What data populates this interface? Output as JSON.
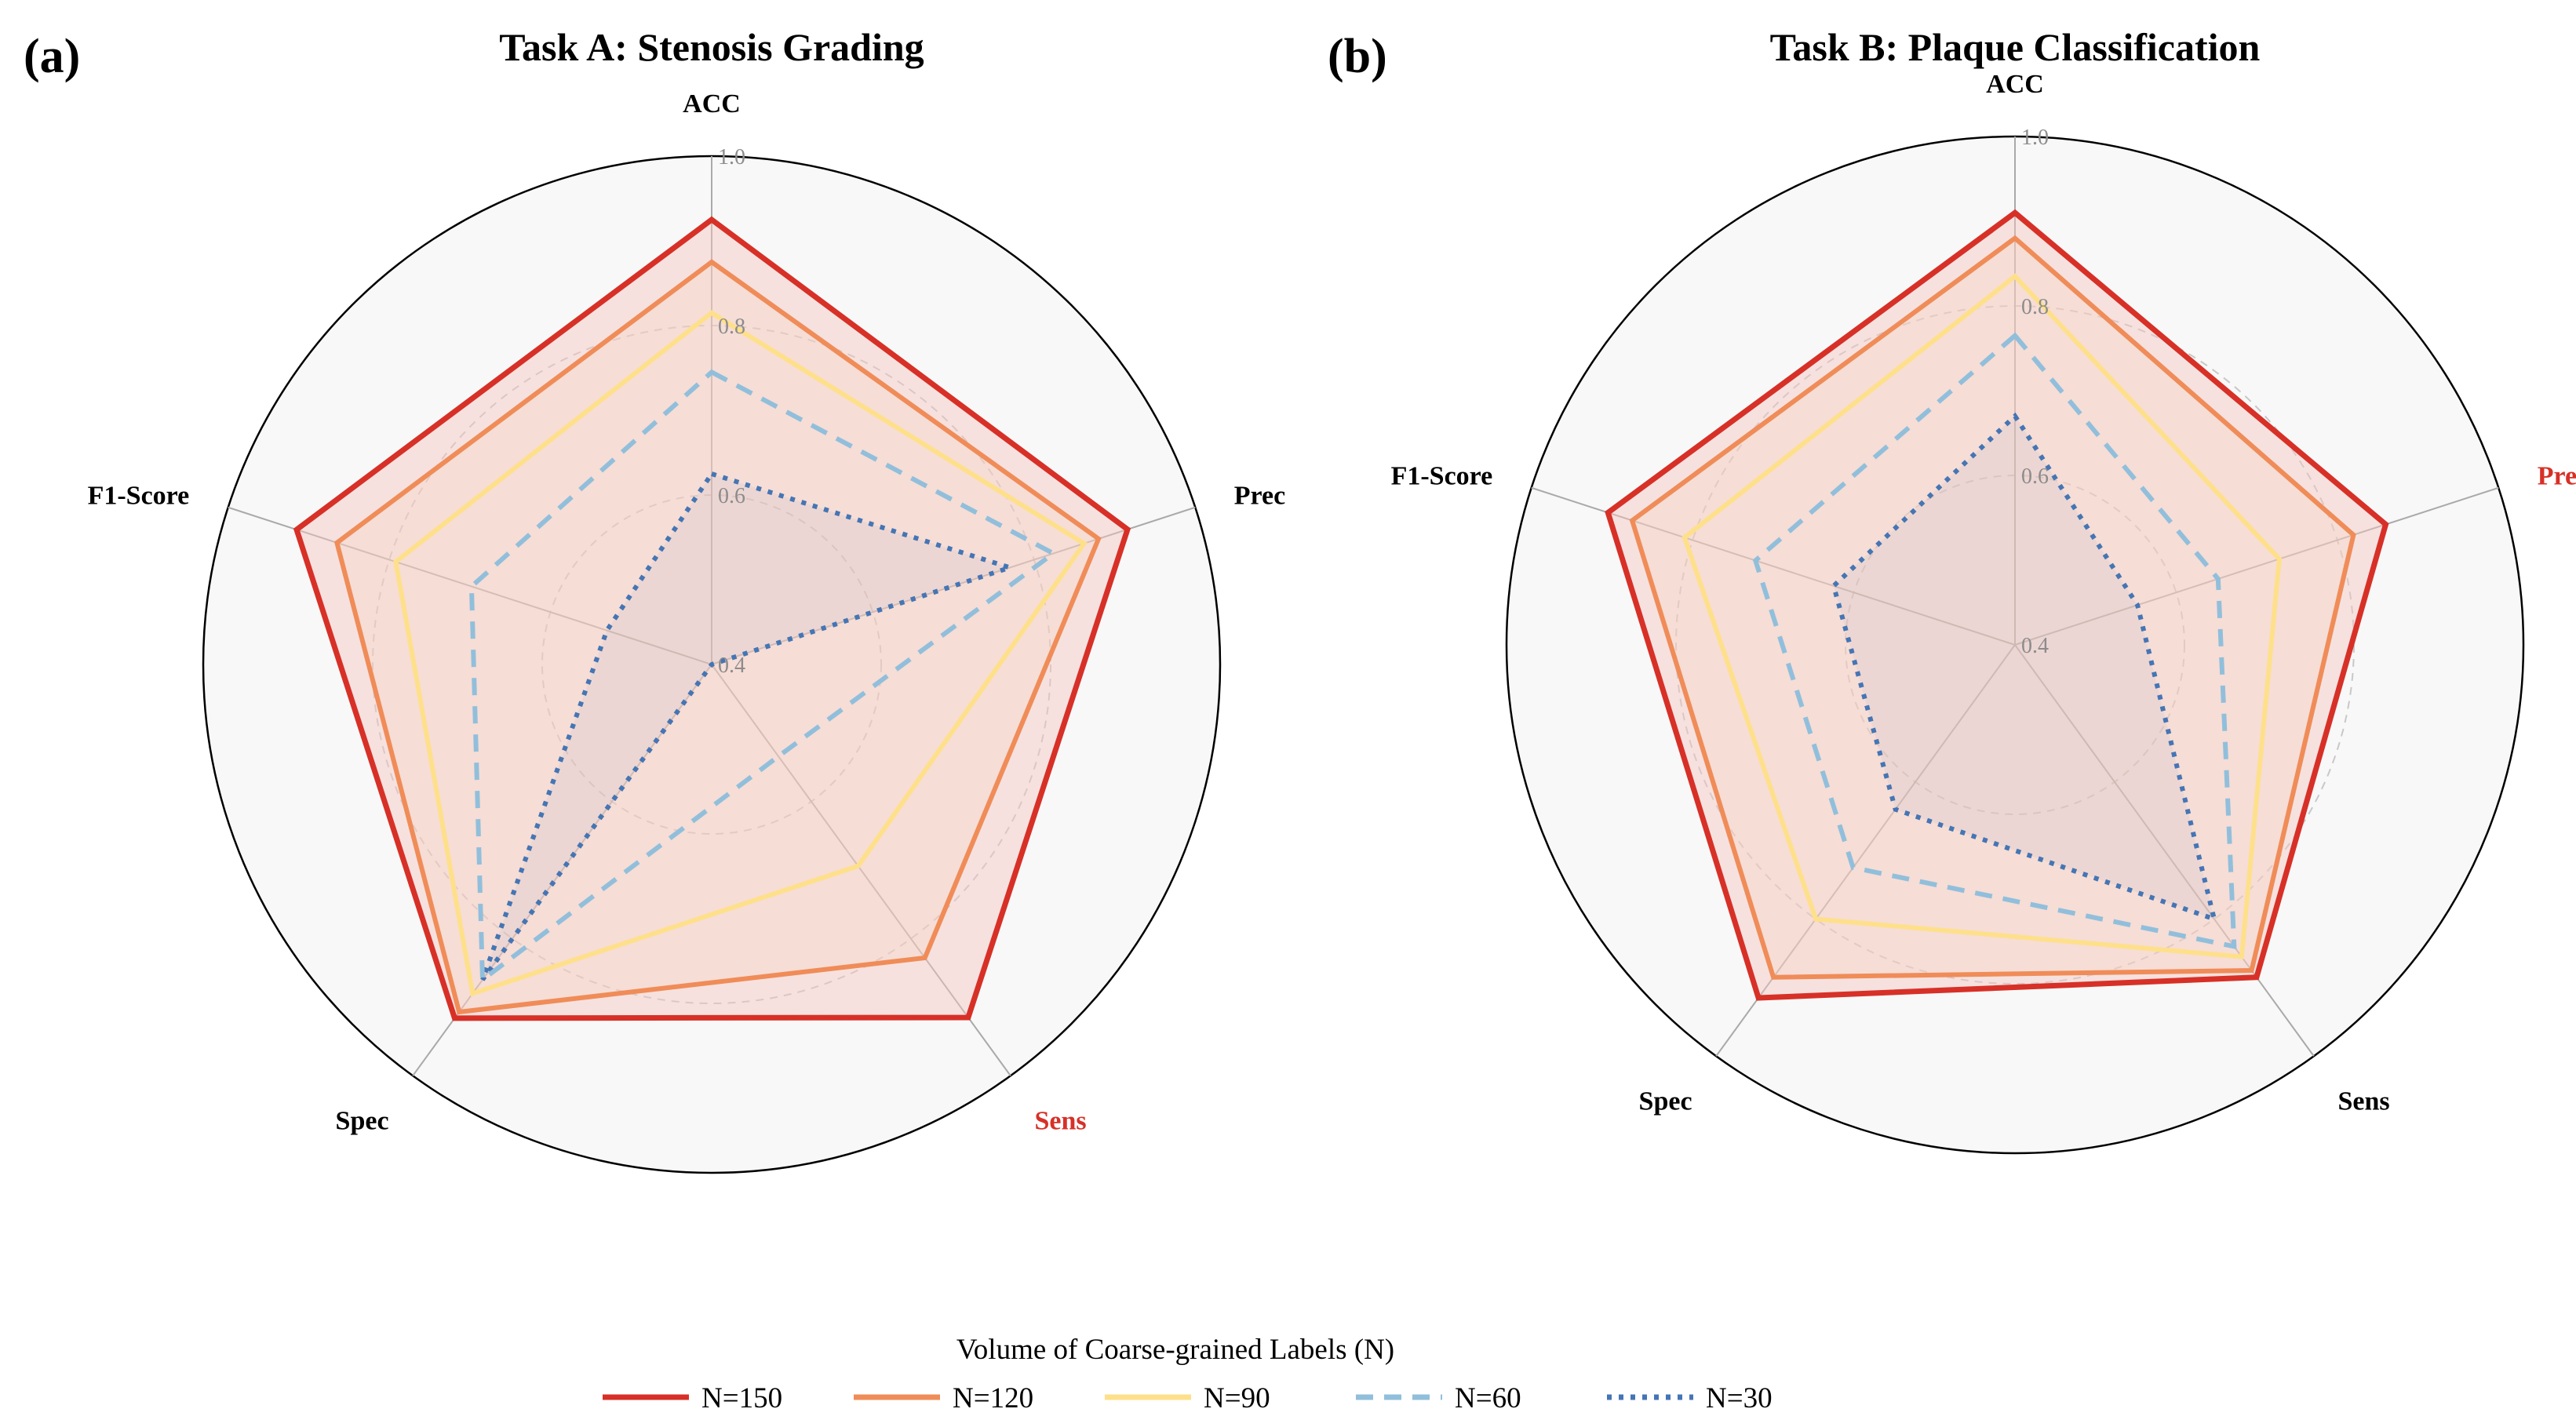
{
  "legend": {
    "title": "Volume of Coarse-grained Labels (N)"
  },
  "chart_data": [
    {
      "type": "radar",
      "panel_label": "(a)",
      "title": "Task A: Stenosis Grading",
      "axes": [
        "ACC",
        "Prec",
        "Sens",
        "Spec",
        "F1-Score"
      ],
      "highlighted_axis": "Sens",
      "radial_range": [
        0.4,
        1.0
      ],
      "radial_ticks": [
        {
          "value": 0.4,
          "label": "0.4"
        },
        {
          "value": 0.6,
          "label": "0.6"
        },
        {
          "value": 0.8,
          "label": "0.8"
        },
        {
          "value": 1.0,
          "label": "1.0"
        }
      ],
      "series": [
        {
          "name": "N=150",
          "values": [
            0.925,
            0.916,
            0.915,
            0.916,
            0.915
          ]
        },
        {
          "name": "N=120",
          "values": [
            0.875,
            0.88,
            0.828,
            0.907,
            0.865
          ]
        },
        {
          "name": "N=90",
          "values": [
            0.815,
            0.862,
            0.694,
            0.88,
            0.792
          ]
        },
        {
          "name": "N=60",
          "values": [
            0.745,
            0.824,
            0.534,
            0.86,
            0.698
          ]
        },
        {
          "name": "N=30",
          "values": [
            0.625,
            0.77,
            0.4,
            0.86,
            0.53
          ]
        }
      ]
    },
    {
      "type": "radar",
      "panel_label": "(b)",
      "title": "Task B: Plaque Classification",
      "axes": [
        "ACC",
        "Prec",
        "Sens",
        "Spec",
        "F1-Score"
      ],
      "highlighted_axis": "Prec",
      "radial_range": [
        0.4,
        1.0
      ],
      "radial_ticks": [
        {
          "value": 0.4,
          "label": "0.4"
        },
        {
          "value": 0.6,
          "label": "0.6"
        },
        {
          "value": 0.8,
          "label": "0.8"
        },
        {
          "value": 1.0,
          "label": "1.0"
        }
      ],
      "series": [
        {
          "name": "N=150",
          "values": [
            0.91,
            0.86,
            0.885,
            0.915,
            0.905
          ]
        },
        {
          "name": "N=120",
          "values": [
            0.88,
            0.82,
            0.875,
            0.885,
            0.875
          ]
        },
        {
          "name": "N=90",
          "values": [
            0.835,
            0.728,
            0.855,
            0.8,
            0.81
          ]
        },
        {
          "name": "N=60",
          "values": [
            0.765,
            0.652,
            0.84,
            0.725,
            0.722
          ]
        },
        {
          "name": "N=30",
          "values": [
            0.67,
            0.552,
            0.8,
            0.64,
            0.625
          ]
        }
      ]
    }
  ],
  "series_styles": [
    {
      "name": "N=150",
      "color": "#d73027",
      "dash": "solid",
      "fill": "#f4c6c1",
      "fill_opacity": 0.45
    },
    {
      "name": "N=120",
      "color": "#f08c58",
      "dash": "solid",
      "fill": "#f8d4bd",
      "fill_opacity": 0.25
    },
    {
      "name": "N=90",
      "color": "#fee08b",
      "dash": "solid",
      "fill": "#fff0c8",
      "fill_opacity": 0.0
    },
    {
      "name": "N=60",
      "color": "#91bfdb",
      "dash": "dashed",
      "fill": "#91bfdb",
      "fill_opacity": 0.0
    },
    {
      "name": "N=30",
      "color": "#4575b4",
      "dash": "dotted",
      "fill": "#7e8fb5",
      "fill_opacity": 0.08
    }
  ],
  "colors": {
    "highlight_axis": "#d73027",
    "normal_axis": "#000000",
    "background_disk": "#f8f8f8",
    "grid": "#c8c8c8",
    "spoke": "#aaaaaa"
  }
}
